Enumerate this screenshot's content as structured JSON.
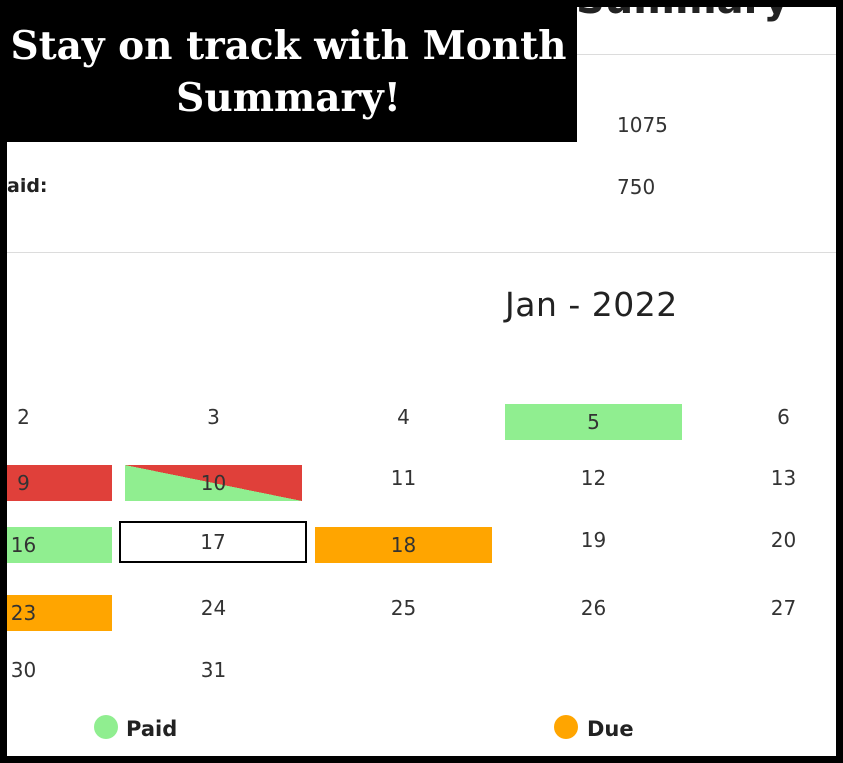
{
  "banner": {
    "line1": "Stay on track with Month",
    "line2": "Summary!"
  },
  "summary": {
    "title": "Summary",
    "total_value": "1075",
    "paid_label": "aid:",
    "paid_value": "750"
  },
  "calendar": {
    "month_title": "Jan - 2022",
    "days": {
      "d2": "2",
      "d3": "3",
      "d4": "4",
      "d5": "5",
      "d6": "6",
      "d9": "9",
      "d10": "10",
      "d11": "11",
      "d12": "12",
      "d13": "13",
      "d16": "16",
      "d17": "17",
      "d18": "18",
      "d19": "19",
      "d20": "20",
      "d23": "23",
      "d24": "24",
      "d25": "25",
      "d26": "26",
      "d27": "27",
      "d30": "30",
      "d31": "31"
    },
    "status_colors": {
      "paid": "#90ee90",
      "due": "#ffa500",
      "overdue": "#e0403a"
    }
  },
  "legend": {
    "paid_label": "Paid",
    "due_label": "Due"
  }
}
